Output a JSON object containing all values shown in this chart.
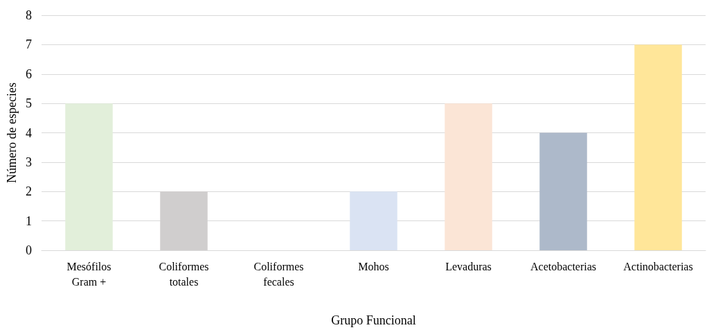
{
  "chart_data": {
    "type": "bar",
    "xlabel": "Grupo Funcional",
    "ylabel": "Número de especies",
    "categories": [
      "Mesófilos\nGram +",
      "Coliformes\ntotales",
      "Coliformes\nfecales",
      "Mohos",
      "Levaduras",
      "Acetobacterias",
      "Actinobacterias"
    ],
    "values": [
      5,
      2,
      0,
      2,
      5,
      4,
      7
    ],
    "colors": [
      "#e2efda",
      "#d0cece",
      "#f2f2f2",
      "#dae3f3",
      "#fbe5d6",
      "#adb9ca",
      "#ffe699"
    ],
    "ylim": [
      0,
      8
    ],
    "yticks": [
      0,
      1,
      2,
      3,
      4,
      5,
      6,
      7,
      8
    ],
    "grid": "y"
  }
}
